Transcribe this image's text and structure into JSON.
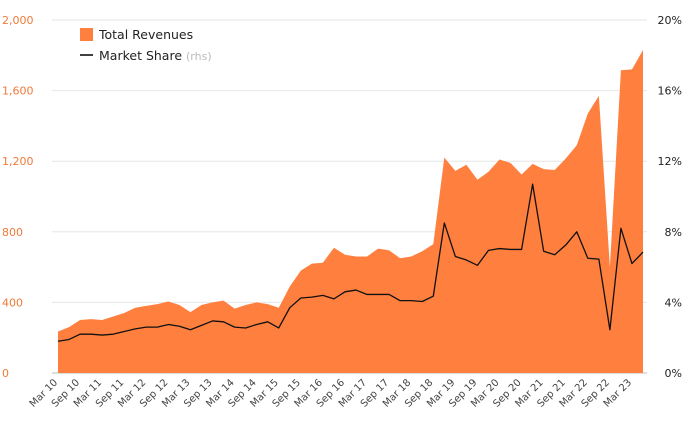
{
  "chart_data": {
    "type": "area",
    "categories": [
      "Mar 10",
      "Jun 10",
      "Sep 10",
      "Dec 10",
      "Mar 11",
      "Jun 11",
      "Sep 11",
      "Dec 11",
      "Mar 12",
      "Jun 12",
      "Sep 12",
      "Dec 12",
      "Mar 13",
      "Jun 13",
      "Sep 13",
      "Dec 13",
      "Mar 14",
      "Jun 14",
      "Sep 14",
      "Dec 14",
      "Mar 15",
      "Jun 15",
      "Sep 15",
      "Dec 15",
      "Mar 16",
      "Jun 16",
      "Sep 16",
      "Dec 16",
      "Mar 17",
      "Jun 17",
      "Sep 17",
      "Dec 17",
      "Mar 18",
      "Jun 18",
      "Sep 18",
      "Dec 18",
      "Mar 19",
      "Jun 19",
      "Sep 19",
      "Dec 19",
      "Mar 20",
      "Jun 20",
      "Sep 20",
      "Dec 20",
      "Mar 21",
      "Jun 21",
      "Sep 21",
      "Dec 21",
      "Mar 22",
      "Jun 22",
      "Sep 22",
      "Dec 22",
      "Mar 23",
      "Jun 23"
    ],
    "x_tick_labels": [
      "Mar 10",
      "Sep 10",
      "Mar 11",
      "Sep 11",
      "Mar 12",
      "Sep 12",
      "Mar 13",
      "Sep 13",
      "Mar 14",
      "Sep 14",
      "Mar 15",
      "Sep 15",
      "Mar 16",
      "Sep 16",
      "Mar 17",
      "Sep 17",
      "Mar 18",
      "Sep 18",
      "Mar 19",
      "Sep 19",
      "Mar 20",
      "Sep 20",
      "Mar 21",
      "Sep 21",
      "Mar 22",
      "Sep 22",
      "Mar 23"
    ],
    "series": [
      {
        "name": "Total Revenues",
        "kind": "area",
        "axis": "left",
        "color": "#ff7f3f",
        "values": [
          235,
          260,
          300,
          305,
          300,
          320,
          340,
          370,
          380,
          390,
          405,
          385,
          345,
          385,
          400,
          410,
          365,
          385,
          400,
          390,
          370,
          490,
          580,
          620,
          625,
          710,
          670,
          660,
          660,
          705,
          695,
          650,
          660,
          690,
          730,
          1220,
          1145,
          1180,
          1095,
          1140,
          1210,
          1190,
          1125,
          1185,
          1155,
          1150,
          1215,
          1290,
          1470,
          1570,
          600,
          1715,
          1720,
          1830
        ]
      },
      {
        "name": "Market Share",
        "name_suffix": "(rhs)",
        "kind": "line",
        "axis": "right",
        "color": "#111111",
        "values": [
          1.8,
          1.9,
          2.2,
          2.2,
          2.15,
          2.2,
          2.35,
          2.5,
          2.6,
          2.6,
          2.75,
          2.65,
          2.45,
          2.7,
          2.95,
          2.9,
          2.6,
          2.55,
          2.75,
          2.9,
          2.55,
          3.7,
          4.25,
          4.3,
          4.4,
          4.2,
          4.6,
          4.7,
          4.45,
          4.45,
          4.45,
          4.1,
          4.1,
          4.05,
          4.35,
          8.5,
          6.6,
          6.4,
          6.1,
          6.95,
          7.05,
          7.0,
          7.0,
          10.7,
          6.9,
          6.7,
          7.25,
          8.0,
          6.5,
          6.45,
          2.45,
          8.2,
          6.2,
          6.85
        ]
      }
    ],
    "y_left": {
      "ylim": [
        0,
        2000
      ],
      "ticks": [
        "0",
        "400",
        "800",
        "1,200",
        "1,600",
        "2,000"
      ],
      "tick_values": [
        0,
        400,
        800,
        1200,
        1600,
        2000
      ],
      "color": "#f07a3a"
    },
    "y_right": {
      "ylim": [
        0,
        20
      ],
      "ticks": [
        "0%",
        "4%",
        "8%",
        "12%",
        "16%",
        "20%"
      ],
      "tick_values": [
        0,
        4,
        8,
        12,
        16,
        20
      ]
    },
    "grid": true,
    "legend": {
      "placement": "top-left"
    },
    "title": "",
    "xlabel": "",
    "ylabel": ""
  }
}
